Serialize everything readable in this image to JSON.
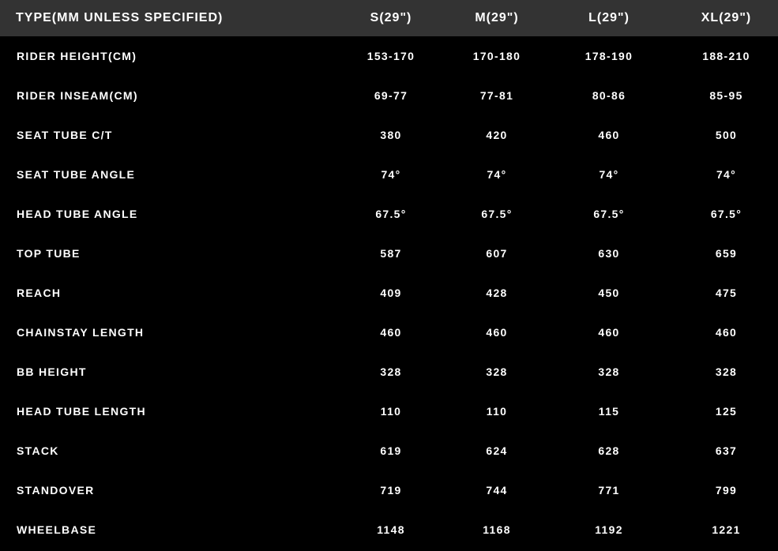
{
  "table": {
    "headers": [
      "TYPE(MM UNLESS SPECIFIED)",
      "S(29\")",
      "M(29\")",
      "L(29\")",
      "XL(29\")"
    ],
    "rows": [
      [
        "RIDER HEIGHT(CM)",
        "153-170",
        "170-180",
        "178-190",
        "188-210"
      ],
      [
        "RIDER INSEAM(CM)",
        "69-77",
        "77-81",
        "80-86",
        "85-95"
      ],
      [
        "SEAT TUBE C/T",
        "380",
        "420",
        "460",
        "500"
      ],
      [
        "SEAT TUBE ANGLE",
        "74°",
        "74°",
        "74°",
        "74°"
      ],
      [
        "HEAD TUBE ANGLE",
        "67.5°",
        "67.5°",
        "67.5°",
        "67.5°"
      ],
      [
        "TOP TUBE",
        "587",
        "607",
        "630",
        "659"
      ],
      [
        "REACH",
        "409",
        "428",
        "450",
        "475"
      ],
      [
        "CHAINSTAY LENGTH",
        "460",
        "460",
        "460",
        "460"
      ],
      [
        "BB HEIGHT",
        "328",
        "328",
        "328",
        "328"
      ],
      [
        "HEAD TUBE LENGTH",
        "110",
        "110",
        "115",
        "125"
      ],
      [
        "STACK",
        "619",
        "624",
        "628",
        "637"
      ],
      [
        "STANDOVER",
        "719",
        "744",
        "771",
        "799"
      ],
      [
        "WHEELBASE",
        "1148",
        "1168",
        "1192",
        "1221"
      ]
    ]
  }
}
